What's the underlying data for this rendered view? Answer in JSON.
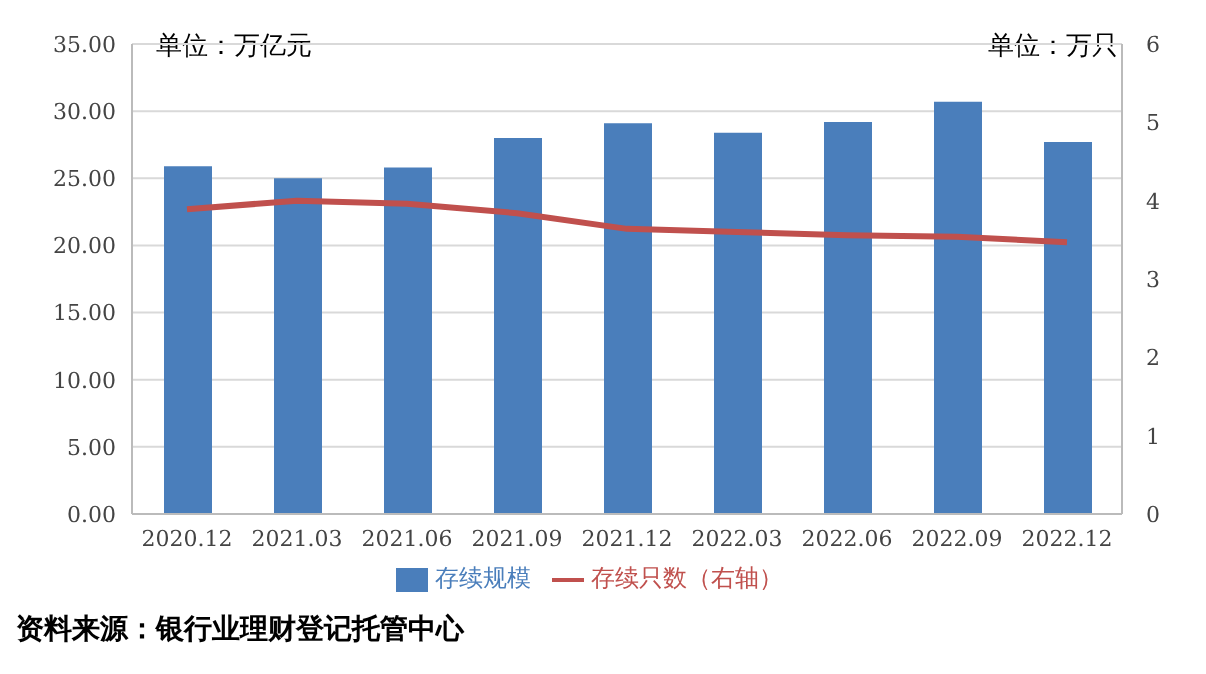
{
  "chart_data": {
    "type": "bar",
    "ylabel": "单位：万亿元",
    "y2label": "单位：万只",
    "categories": [
      "2020.12",
      "2021.03",
      "2021.06",
      "2021.09",
      "2021.12",
      "2022.03",
      "2022.06",
      "2022.09",
      "2022.12"
    ],
    "series": [
      {
        "name": "存续规模",
        "color": "#4a7ebb",
        "values": [
          25.9,
          25.0,
          25.8,
          28.0,
          29.1,
          28.4,
          29.2,
          30.7,
          27.7
        ]
      },
      {
        "name": "存续只数（右轴）",
        "type": "line",
        "axis": "y2",
        "color": "#c0504d",
        "values": [
          3.89,
          4.0,
          3.96,
          3.84,
          3.64,
          3.6,
          3.56,
          3.54,
          3.47
        ]
      }
    ],
    "ylim": [
      0,
      35
    ],
    "yticks": [
      {
        "value": 0,
        "label": "0.00"
      },
      {
        "value": 5,
        "label": "5.00"
      },
      {
        "value": 10,
        "label": "10.00"
      },
      {
        "value": 15,
        "label": "15.00"
      },
      {
        "value": 20,
        "label": "20.00"
      },
      {
        "value": 25,
        "label": "25.00"
      },
      {
        "value": 30,
        "label": "30.00"
      },
      {
        "value": 35,
        "label": "35.00"
      }
    ],
    "y2lim": [
      0,
      6
    ],
    "y2ticks": [
      0,
      1,
      2,
      3,
      4,
      5,
      6
    ],
    "grid": "y",
    "legend": "bottom",
    "marker": "none",
    "line_style": "solid",
    "annotations": [
      "资料来源：银行业理财登记托管中心"
    ]
  }
}
